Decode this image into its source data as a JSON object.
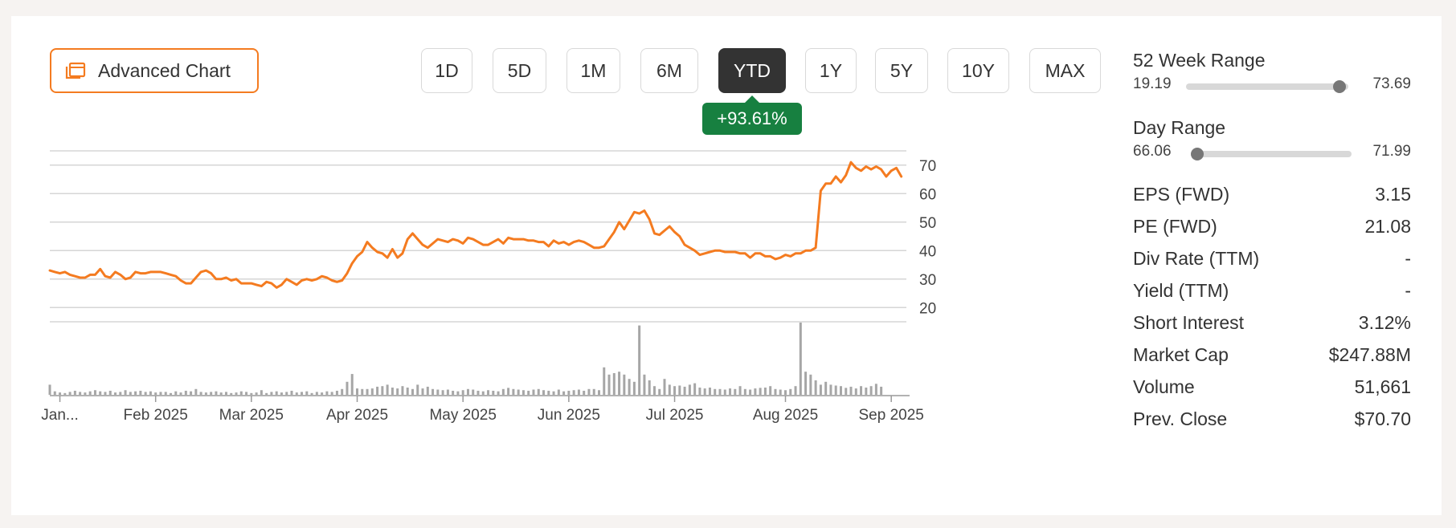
{
  "toolbar": {
    "advanced_chart_label": "Advanced Chart",
    "ranges": [
      "1D",
      "5D",
      "1M",
      "6M",
      "YTD",
      "1Y",
      "5Y",
      "10Y",
      "MAX"
    ],
    "active_range": "YTD",
    "change_badge": "+93.61%",
    "badge_color": "#178040"
  },
  "stats": {
    "week52": {
      "label": "52 Week Range",
      "low": "19.19",
      "high": "73.69",
      "current": 70.7
    },
    "day": {
      "label": "Day Range",
      "low": "66.06",
      "high": "71.99",
      "current": 66.3
    },
    "rows": [
      {
        "label": "EPS (FWD)",
        "value": "3.15"
      },
      {
        "label": "PE (FWD)",
        "value": "21.08"
      },
      {
        "label": "Div Rate (TTM)",
        "value": "-"
      },
      {
        "label": "Yield (TTM)",
        "value": "-"
      },
      {
        "label": "Short Interest",
        "value": "3.12%"
      },
      {
        "label": "Market Cap",
        "value": "$247.88M"
      },
      {
        "label": "Volume",
        "value": "51,661"
      },
      {
        "label": "Prev. Close",
        "value": "$70.70"
      }
    ]
  },
  "chart_data": {
    "type": "line",
    "line_color": "#f47b20",
    "volume_color": "#a6a6a6",
    "y_ticks": [
      70,
      60,
      50,
      40,
      30,
      20
    ],
    "ylim": [
      15,
      75
    ],
    "xlim": [
      0,
      170
    ],
    "grid": true,
    "x_ticks": [
      {
        "label": "Jan...",
        "x": 2
      },
      {
        "label": "Feb 2025",
        "x": 21
      },
      {
        "label": "Mar 2025",
        "x": 40
      },
      {
        "label": "Apr 2025",
        "x": 61
      },
      {
        "label": "May 2025",
        "x": 82
      },
      {
        "label": "Jun 2025",
        "x": 103
      },
      {
        "label": "Jul 2025",
        "x": 124
      },
      {
        "label": "Aug 2025",
        "x": 146
      },
      {
        "label": "Sep 2025",
        "x": 167
      }
    ],
    "price": [
      33,
      32.5,
      32,
      32.5,
      31.5,
      31,
      30.5,
      30.5,
      31.5,
      31.5,
      33.5,
      31,
      30.5,
      32.5,
      31.5,
      30,
      30.5,
      32.5,
      32,
      32,
      32.5,
      32.5,
      32.5,
      32,
      31.5,
      31,
      29.5,
      28.5,
      28.5,
      30.5,
      32.5,
      33,
      32,
      30,
      30,
      30.5,
      29.5,
      30,
      28.5,
      28.5,
      28.5,
      28,
      27.5,
      29,
      28.5,
      27,
      28,
      30,
      29,
      28,
      29.5,
      30,
      29.5,
      30,
      31,
      30.5,
      29.5,
      29,
      29.5,
      32,
      35.5,
      38,
      39.5,
      43,
      41,
      39.5,
      39,
      37.5,
      40.5,
      37.5,
      39,
      44,
      46,
      44,
      42,
      41,
      42.5,
      44,
      43.5,
      43,
      44,
      43.5,
      42.5,
      44.5,
      44,
      43,
      42,
      42,
      43,
      44,
      42.5,
      44.5,
      44,
      44,
      44,
      43.5,
      43.5,
      43,
      43,
      41.5,
      43.5,
      42.5,
      43,
      42,
      43,
      43.5,
      43,
      42,
      41,
      41,
      41.5,
      44,
      46.5,
      50,
      47.5,
      50.5,
      53.5,
      53,
      54,
      51,
      46,
      45.5,
      47,
      48.5,
      46.5,
      45,
      42,
      41,
      40,
      38.5,
      39,
      39.5,
      40,
      40,
      39.5,
      39.5,
      39.5,
      39,
      39,
      37.5,
      39,
      39,
      38,
      38,
      37,
      37.5,
      38.5,
      38,
      39,
      39,
      40,
      40,
      41,
      61,
      63.5,
      63.5,
      66,
      64,
      66.5,
      71,
      69,
      68,
      69.5,
      68.5,
      69.5,
      68.5,
      66,
      68,
      69,
      66
    ],
    "volume": [
      0.35,
      0.12,
      0.08,
      0.06,
      0.1,
      0.14,
      0.1,
      0.08,
      0.12,
      0.16,
      0.12,
      0.1,
      0.14,
      0.08,
      0.1,
      0.16,
      0.1,
      0.12,
      0.14,
      0.1,
      0.12,
      0.08,
      0.1,
      0.1,
      0.06,
      0.12,
      0.08,
      0.14,
      0.12,
      0.2,
      0.1,
      0.08,
      0.1,
      0.12,
      0.08,
      0.1,
      0.06,
      0.08,
      0.12,
      0.1,
      0.06,
      0.08,
      0.16,
      0.06,
      0.1,
      0.12,
      0.08,
      0.1,
      0.14,
      0.08,
      0.1,
      0.12,
      0.06,
      0.1,
      0.08,
      0.12,
      0.1,
      0.14,
      0.2,
      0.45,
      0.72,
      0.22,
      0.2,
      0.2,
      0.22,
      0.28,
      0.3,
      0.35,
      0.25,
      0.22,
      0.3,
      0.25,
      0.2,
      0.35,
      0.22,
      0.28,
      0.2,
      0.18,
      0.16,
      0.18,
      0.14,
      0.12,
      0.16,
      0.2,
      0.18,
      0.14,
      0.12,
      0.16,
      0.14,
      0.12,
      0.2,
      0.24,
      0.2,
      0.18,
      0.16,
      0.14,
      0.18,
      0.2,
      0.16,
      0.14,
      0.12,
      0.18,
      0.12,
      0.14,
      0.16,
      0.18,
      0.14,
      0.2,
      0.2,
      0.16,
      0.95,
      0.7,
      0.75,
      0.8,
      0.7,
      0.55,
      0.45,
      2.4,
      0.7,
      0.5,
      0.3,
      0.2,
      0.55,
      0.35,
      0.3,
      0.32,
      0.28,
      0.35,
      0.4,
      0.25,
      0.22,
      0.25,
      0.2,
      0.2,
      0.18,
      0.22,
      0.2,
      0.3,
      0.2,
      0.18,
      0.22,
      0.24,
      0.25,
      0.3,
      0.2,
      0.18,
      0.16,
      0.2,
      0.3,
      2.5,
      0.8,
      0.7,
      0.5,
      0.35,
      0.45,
      0.35,
      0.32,
      0.3,
      0.24,
      0.28,
      0.22,
      0.3,
      0.25,
      0.3,
      0.38,
      0.28
    ]
  }
}
